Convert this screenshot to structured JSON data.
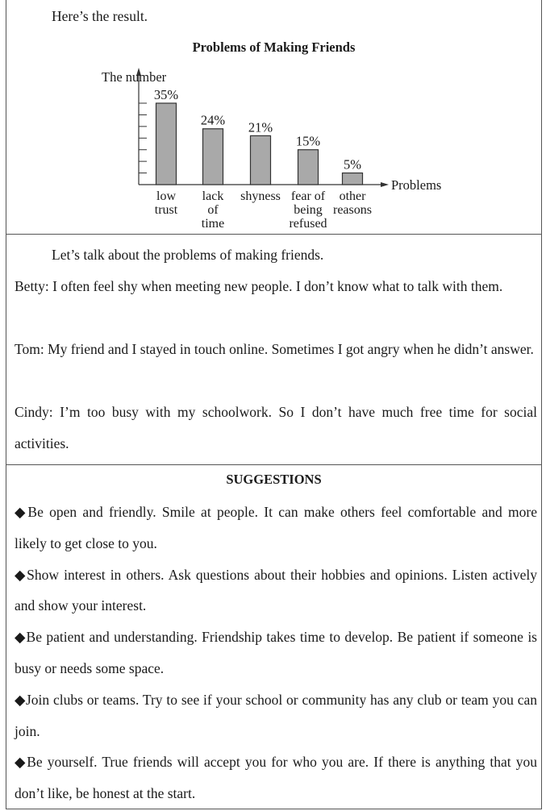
{
  "intro": "Here’s the result.",
  "chart_data": {
    "type": "bar",
    "title": "Problems of Making Friends",
    "ylabel": "The number",
    "xlabel": "Problems",
    "categories": [
      [
        "low",
        "trust"
      ],
      [
        "lack",
        "of",
        "time"
      ],
      [
        "shyness"
      ],
      [
        "fear of",
        "being",
        "refused"
      ],
      [
        "other",
        "reasons"
      ]
    ],
    "values": [
      35,
      24,
      21,
      15,
      5
    ],
    "data_labels": [
      "35%",
      "24%",
      "21%",
      "15%",
      "5%"
    ],
    "ylim": [
      0,
      35
    ],
    "ytick_step": 5,
    "bar_color": "#a9a9a9",
    "grid": false
  },
  "discussion": {
    "intro": "Let’s talk about the problems of making friends.",
    "lines": [
      "Betty: I often feel shy when meeting new people. I don’t know what to talk with them.",
      "Tom: My friend and I stayed in touch online. Sometimes I got angry when he didn’t answer.",
      "Cindy: I’m too busy with my schoolwork. So I don’t have much free time for social activities."
    ]
  },
  "suggestions": {
    "heading": "SUGGESTIONS",
    "bullet_icon": "diamond-icon",
    "items": [
      "Be open and friendly. Smile at people. It can make others feel comfortable and more likely to get close to you.",
      "Show interest in others. Ask questions about their hobbies and opinions. Listen actively and show your interest.",
      "Be patient and understanding. Friendship takes time to develop. Be patient if someone is busy or needs some space.",
      "Join clubs or teams. Try to see if your school or community has any club or team you can join.",
      "Be yourself. True friends will accept you for who you are. If there is anything that you don’t like, be honest at the start."
    ]
  }
}
